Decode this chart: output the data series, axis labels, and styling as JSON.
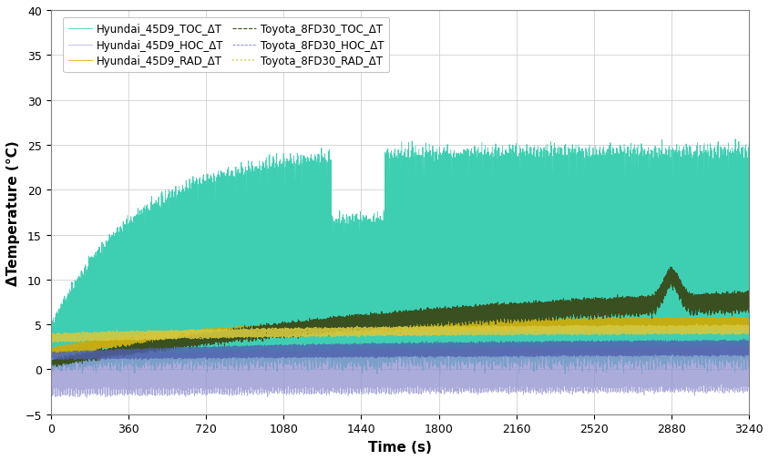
{
  "title": "",
  "xlabel": "Time (s)",
  "ylabel": "ΔTemperature (°C)",
  "xlim": [
    0,
    3240
  ],
  "ylim": [
    -5,
    40
  ],
  "yticks": [
    -5,
    0,
    5,
    10,
    15,
    20,
    25,
    30,
    35,
    40
  ],
  "xticks": [
    0,
    360,
    720,
    1080,
    1440,
    1800,
    2160,
    2520,
    2880,
    3240
  ],
  "series": [
    {
      "label": "Hyundai_45D9_TOC_ΔT",
      "color": "#3ECFB2",
      "linestyle": "-",
      "linewidth": 0.6,
      "alpha": 1.0,
      "type": "TOC_H"
    },
    {
      "label": "Hyundai_45D9_HOC_ΔT",
      "color": "#9090D0",
      "linestyle": "-",
      "linewidth": 0.5,
      "alpha": 0.75,
      "type": "HOC_H"
    },
    {
      "label": "Hyundai_45D9_RAD_ΔT",
      "color": "#D4AA00",
      "linestyle": "-",
      "linewidth": 0.6,
      "alpha": 0.9,
      "type": "RAD_H"
    },
    {
      "label": "Toyota_8FD30_TOC_ΔT",
      "color": "#3A5020",
      "linestyle": "--",
      "linewidth": 0.8,
      "alpha": 1.0,
      "type": "TOC_T"
    },
    {
      "label": "Toyota_8FD30_HOC_ΔT",
      "color": "#5060B0",
      "linestyle": "--",
      "linewidth": 0.6,
      "alpha": 0.8,
      "type": "HOC_T"
    },
    {
      "label": "Toyota_8FD30_RAD_ΔT",
      "color": "#D4C840",
      "linestyle": ":",
      "linewidth": 1.2,
      "alpha": 0.9,
      "type": "RAD_T"
    }
  ],
  "legend_fontsize": 8.5,
  "axis_fontsize": 11,
  "tick_fontsize": 9,
  "figsize": [
    8.45,
    5.06
  ],
  "dpi": 100
}
